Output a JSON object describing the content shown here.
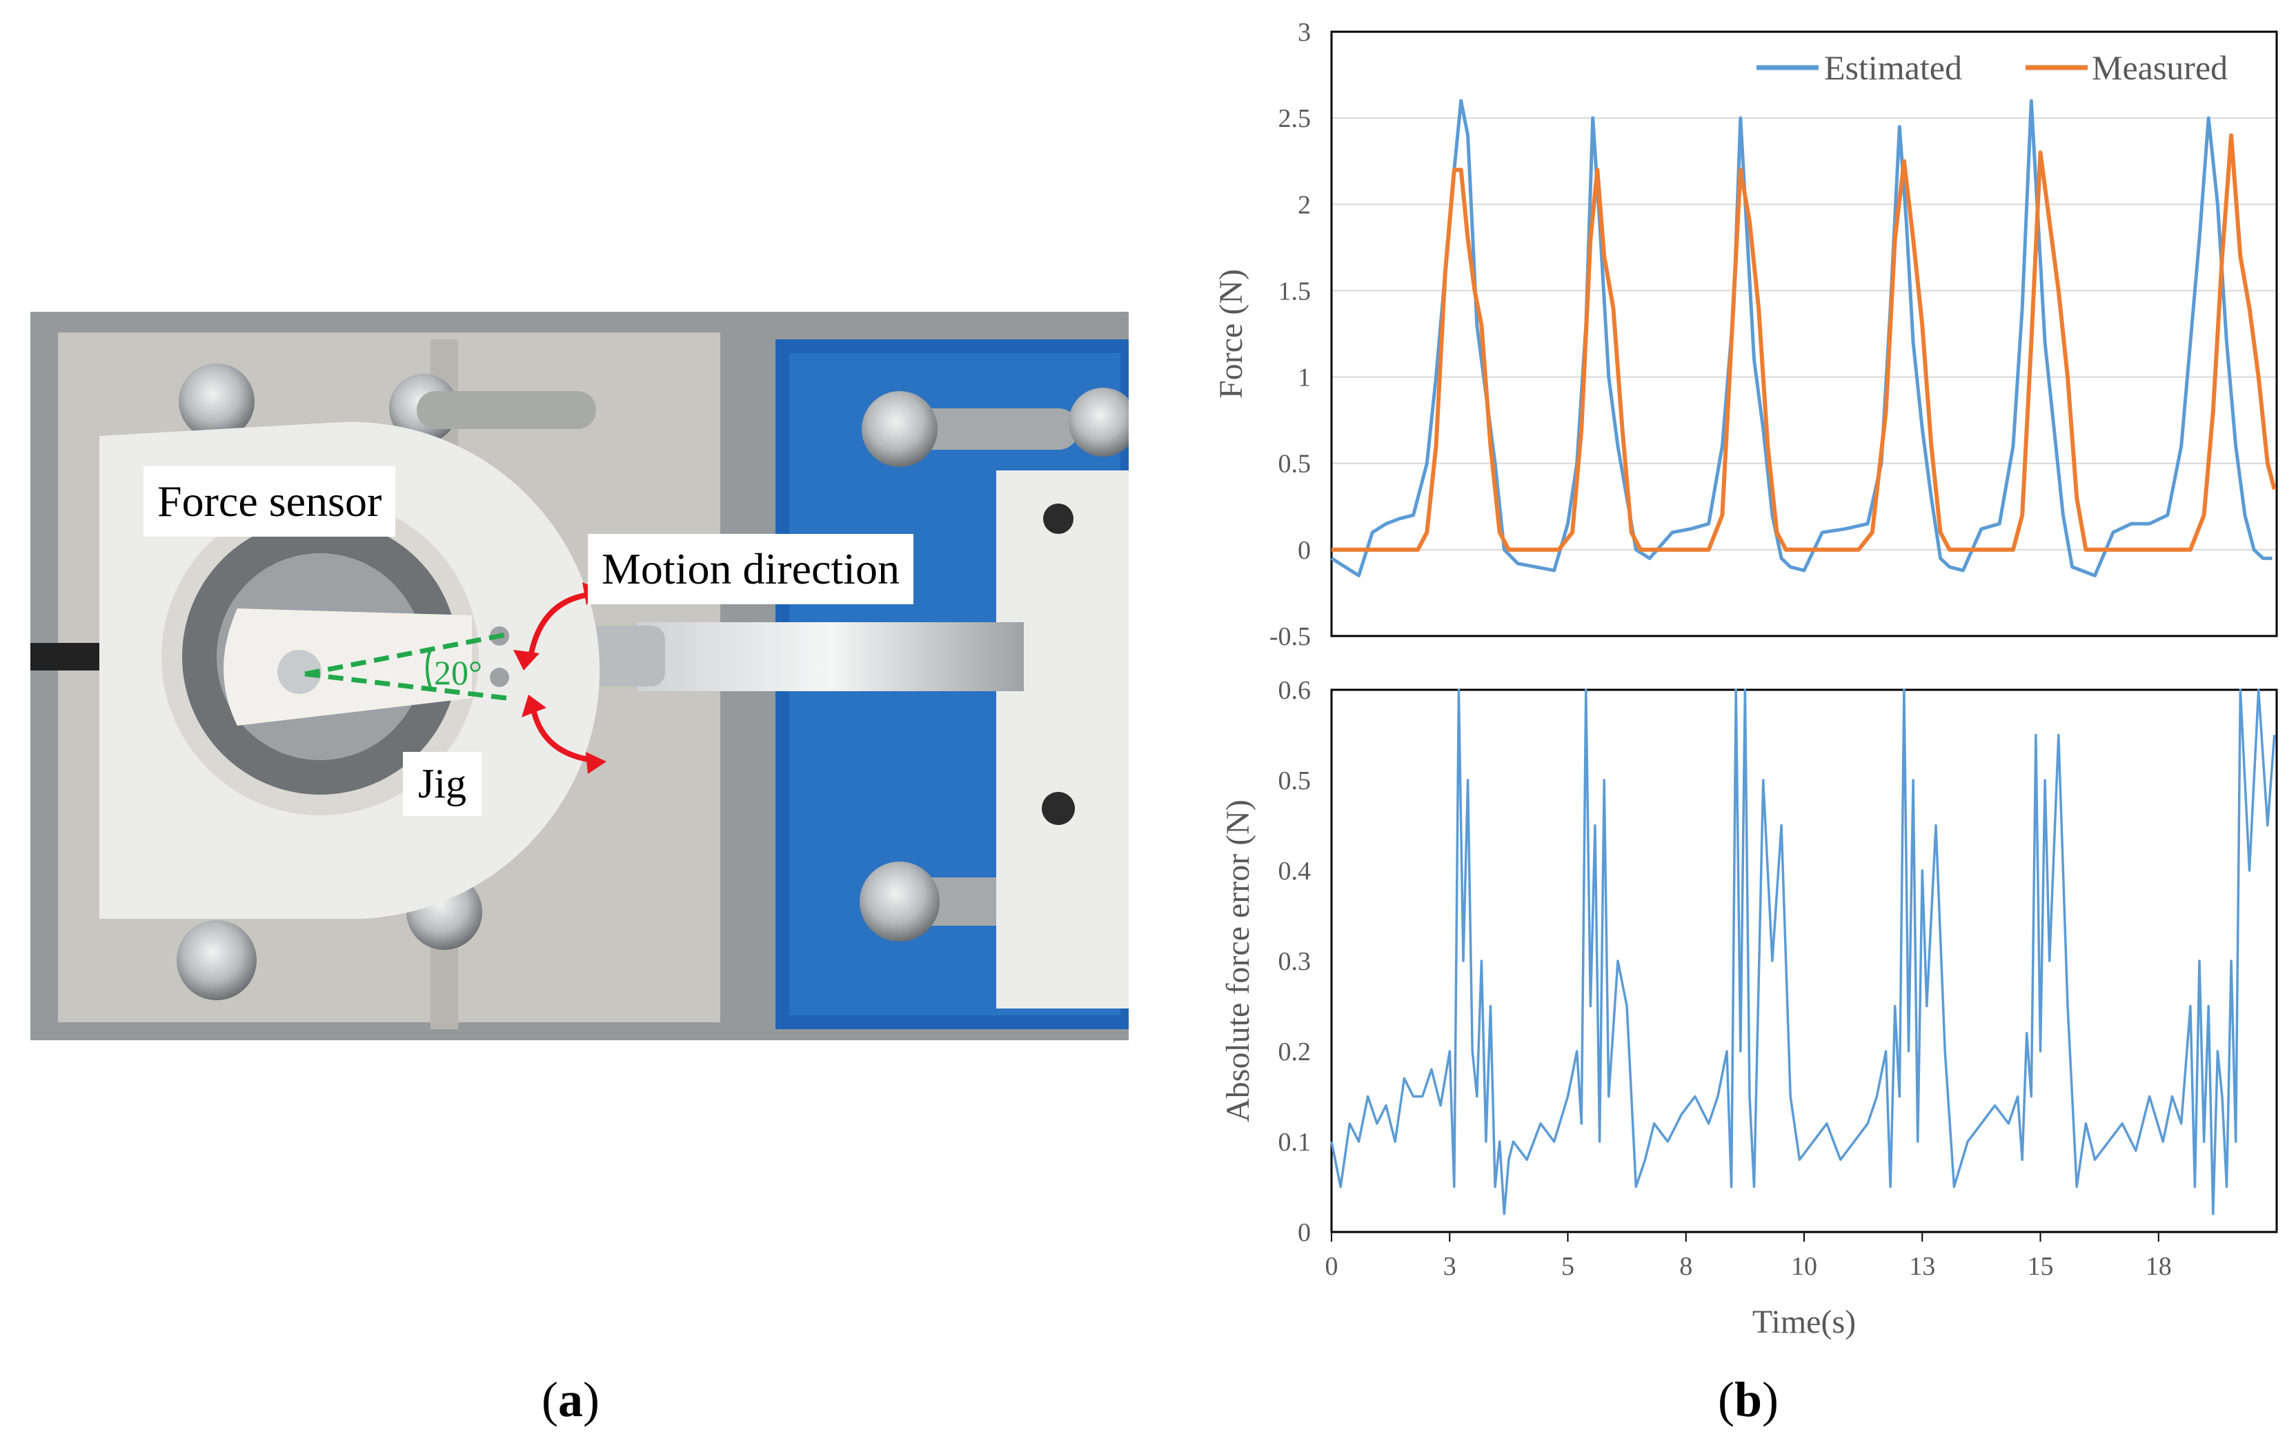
{
  "panel_a": {
    "caption_letter": "a",
    "labels": {
      "force_sensor": "Force sensor",
      "motion_direction": "Motion direction",
      "jig": "Jig",
      "angle": "20°"
    },
    "colors": {
      "angle_lines": "#22a84a",
      "arrows": "#e8171f",
      "base_blue": "#1f64b4",
      "white_part": "#ececea"
    }
  },
  "panel_b": {
    "caption_letter": "b"
  },
  "chart_data": [
    {
      "type": "line",
      "title": "",
      "xlabel": "",
      "ylabel": "Force (N)",
      "ylim": [
        -0.5,
        3
      ],
      "xlim": [
        0,
        20.8
      ],
      "yticks": [
        "-0.5",
        "0",
        "0.5",
        "1",
        "1.5",
        "2",
        "2.5",
        "3"
      ],
      "grid": "horizontal",
      "legend_position": "top-right",
      "series": [
        {
          "name": "Estimated",
          "color": "#5b9bd5",
          "x": [
            0,
            0.3,
            0.6,
            0.9,
            1.2,
            1.5,
            1.8,
            2.1,
            2.3,
            2.5,
            2.7,
            2.85,
            3.0,
            3.2,
            3.4,
            3.6,
            3.8,
            4.1,
            4.5,
            4.9,
            5.2,
            5.4,
            5.6,
            5.75,
            5.9,
            6.1,
            6.3,
            6.5,
            6.7,
            7.0,
            7.5,
            7.9,
            8.3,
            8.6,
            8.85,
            9.0,
            9.15,
            9.3,
            9.5,
            9.7,
            9.9,
            10.1,
            10.4,
            10.8,
            11.3,
            11.8,
            12.1,
            12.3,
            12.5,
            12.65,
            12.8,
            13.0,
            13.2,
            13.4,
            13.6,
            13.9,
            14.3,
            14.7,
            15.0,
            15.2,
            15.4,
            15.55,
            15.7,
            15.9,
            16.1,
            16.3,
            16.5,
            16.8,
            17.2,
            17.6,
            18.0,
            18.4,
            18.7,
            18.9,
            19.1,
            19.3,
            19.5,
            19.7,
            19.9,
            20.1,
            20.3,
            20.5,
            20.7
          ],
          "values": [
            -0.05,
            -0.1,
            -0.15,
            0.1,
            0.15,
            0.18,
            0.2,
            0.5,
            1.0,
            1.6,
            2.2,
            2.6,
            2.4,
            1.3,
            0.9,
            0.5,
            0.0,
            -0.08,
            -0.1,
            -0.12,
            0.15,
            0.5,
            1.3,
            2.5,
            1.9,
            1.0,
            0.6,
            0.3,
            0.0,
            -0.05,
            0.1,
            0.12,
            0.15,
            0.6,
            1.4,
            2.5,
            1.8,
            1.1,
            0.7,
            0.2,
            -0.05,
            -0.1,
            -0.12,
            0.1,
            0.12,
            0.15,
            0.5,
            1.4,
            2.45,
            1.9,
            1.2,
            0.7,
            0.3,
            -0.05,
            -0.1,
            -0.12,
            0.12,
            0.15,
            0.6,
            1.4,
            2.6,
            1.9,
            1.2,
            0.7,
            0.2,
            -0.1,
            -0.12,
            -0.15,
            0.1,
            0.15,
            0.15,
            0.2,
            0.6,
            1.2,
            1.8,
            2.5,
            2.0,
            1.2,
            0.6,
            0.2,
            0.0,
            -0.05,
            -0.05
          ]
        },
        {
          "name": "Measured",
          "color": "#ed7d31",
          "x": [
            0,
            0.5,
            1.0,
            1.5,
            1.9,
            2.1,
            2.3,
            2.5,
            2.7,
            2.85,
            3.0,
            3.15,
            3.3,
            3.5,
            3.7,
            3.9,
            4.1,
            4.5,
            5.0,
            5.3,
            5.5,
            5.7,
            5.85,
            6.0,
            6.2,
            6.4,
            6.6,
            6.8,
            7.2,
            7.8,
            8.3,
            8.6,
            8.8,
            9.0,
            9.2,
            9.4,
            9.6,
            9.8,
            10.0,
            10.2,
            10.6,
            11.2,
            11.6,
            11.9,
            12.2,
            12.4,
            12.6,
            12.8,
            13.0,
            13.2,
            13.4,
            13.6,
            14.0,
            14.6,
            15.0,
            15.2,
            15.4,
            15.6,
            15.8,
            16.0,
            16.2,
            16.4,
            16.6,
            17.0,
            17.6,
            18.2,
            18.6,
            18.9,
            19.2,
            19.4,
            19.6,
            19.8,
            20.0,
            20.2,
            20.4,
            20.6,
            20.75
          ],
          "values": [
            0,
            0,
            0,
            0,
            0,
            0.1,
            0.6,
            1.6,
            2.2,
            2.2,
            1.8,
            1.5,
            1.3,
            0.6,
            0.1,
            0,
            0,
            0,
            0,
            0.1,
            0.7,
            1.8,
            2.2,
            1.7,
            1.4,
            0.7,
            0.1,
            0,
            0,
            0,
            0,
            0.2,
            1.2,
            2.2,
            1.9,
            1.4,
            0.6,
            0.1,
            0,
            0,
            0,
            0,
            0,
            0.1,
            0.8,
            1.8,
            2.25,
            1.8,
            1.3,
            0.6,
            0.1,
            0,
            0,
            0,
            0,
            0.2,
            1.2,
            2.3,
            1.9,
            1.5,
            1.0,
            0.3,
            0,
            0,
            0,
            0,
            0,
            0,
            0.2,
            0.8,
            1.7,
            2.4,
            1.7,
            1.4,
            1.0,
            0.5,
            0.35
          ]
        }
      ]
    },
    {
      "type": "line",
      "title": "",
      "xlabel": "Time(s)",
      "ylabel": "Absolute force error (N)",
      "ylim": [
        0,
        0.6
      ],
      "xlim": [
        0,
        20.8
      ],
      "yticks": [
        "0",
        "0.1",
        "0.2",
        "0.3",
        "0.4",
        "0.5",
        "0.6"
      ],
      "xticks": [
        {
          "pos": 0,
          "label": "0"
        },
        {
          "pos": 2.6,
          "label": "3"
        },
        {
          "pos": 5.2,
          "label": "5"
        },
        {
          "pos": 7.8,
          "label": "8"
        },
        {
          "pos": 10.4,
          "label": "10"
        },
        {
          "pos": 13.0,
          "label": "13"
        },
        {
          "pos": 15.6,
          "label": "15"
        },
        {
          "pos": 18.2,
          "label": "18"
        }
      ],
      "grid": "none",
      "series": [
        {
          "name": "Absolute force error",
          "color": "#5b9bd5",
          "x": [
            0,
            0.2,
            0.4,
            0.6,
            0.8,
            1.0,
            1.2,
            1.4,
            1.6,
            1.8,
            2.0,
            2.2,
            2.4,
            2.6,
            2.7,
            2.8,
            2.9,
            3.0,
            3.1,
            3.2,
            3.3,
            3.4,
            3.5,
            3.6,
            3.7,
            3.8,
            3.9,
            4.0,
            4.3,
            4.6,
            4.9,
            5.2,
            5.4,
            5.5,
            5.6,
            5.7,
            5.8,
            5.9,
            6.0,
            6.1,
            6.3,
            6.5,
            6.7,
            6.9,
            7.1,
            7.4,
            7.7,
            8.0,
            8.3,
            8.5,
            8.7,
            8.8,
            8.9,
            9.0,
            9.1,
            9.2,
            9.3,
            9.5,
            9.7,
            9.9,
            10.1,
            10.3,
            10.6,
            10.9,
            11.2,
            11.5,
            11.8,
            12.0,
            12.2,
            12.3,
            12.4,
            12.5,
            12.6,
            12.7,
            12.8,
            12.9,
            13.0,
            13.1,
            13.3,
            13.5,
            13.7,
            14.0,
            14.3,
            14.6,
            14.9,
            15.1,
            15.2,
            15.3,
            15.4,
            15.5,
            15.6,
            15.7,
            15.8,
            16.0,
            16.2,
            16.4,
            16.6,
            16.8,
            17.1,
            17.4,
            17.7,
            18.0,
            18.3,
            18.5,
            18.7,
            18.9,
            19.0,
            19.1,
            19.2,
            19.3,
            19.4,
            19.5,
            19.6,
            19.7,
            19.8,
            19.9,
            20.0,
            20.2,
            20.4,
            20.6,
            20.75
          ],
          "values": [
            0.1,
            0.05,
            0.12,
            0.1,
            0.15,
            0.12,
            0.14,
            0.1,
            0.17,
            0.15,
            0.15,
            0.18,
            0.14,
            0.2,
            0.05,
            0.6,
            0.3,
            0.5,
            0.2,
            0.15,
            0.3,
            0.1,
            0.25,
            0.05,
            0.1,
            0.02,
            0.08,
            0.1,
            0.08,
            0.12,
            0.1,
            0.15,
            0.2,
            0.12,
            0.6,
            0.25,
            0.45,
            0.1,
            0.5,
            0.15,
            0.3,
            0.25,
            0.05,
            0.08,
            0.12,
            0.1,
            0.13,
            0.15,
            0.12,
            0.15,
            0.2,
            0.05,
            0.6,
            0.2,
            0.6,
            0.15,
            0.05,
            0.5,
            0.3,
            0.45,
            0.15,
            0.08,
            0.1,
            0.12,
            0.08,
            0.1,
            0.12,
            0.15,
            0.2,
            0.05,
            0.25,
            0.15,
            0.6,
            0.2,
            0.5,
            0.1,
            0.4,
            0.25,
            0.45,
            0.2,
            0.05,
            0.1,
            0.12,
            0.14,
            0.12,
            0.15,
            0.08,
            0.22,
            0.15,
            0.55,
            0.2,
            0.5,
            0.3,
            0.55,
            0.25,
            0.05,
            0.12,
            0.08,
            0.1,
            0.12,
            0.09,
            0.15,
            0.1,
            0.15,
            0.12,
            0.25,
            0.05,
            0.3,
            0.1,
            0.25,
            0.02,
            0.2,
            0.15,
            0.05,
            0.3,
            0.1,
            0.6,
            0.4,
            0.6,
            0.45,
            0.55
          ]
        }
      ]
    }
  ]
}
